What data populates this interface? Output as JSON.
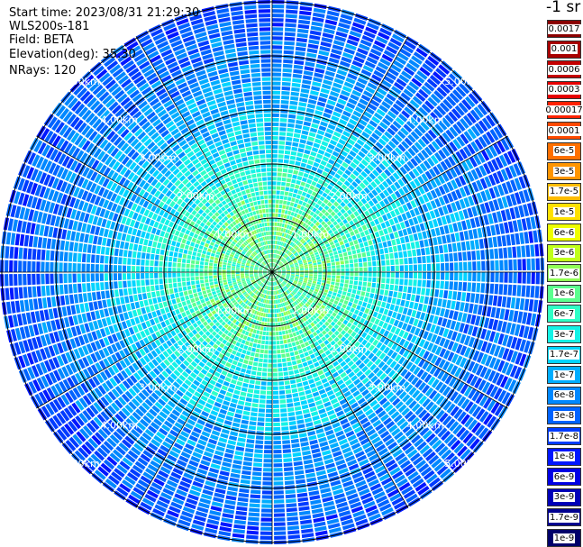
{
  "info": {
    "start_time": "Start time: 2023/08/31 21:29:30",
    "instrument": "WLS200s-181",
    "field": "Field: BETA",
    "elevation": "Elevation(deg): 35.30",
    "nrays": "NRays: 120"
  },
  "chart_data": {
    "type": "heatmap",
    "projection": "polar (PPI scan)",
    "n_rays": 120,
    "elevation_deg": 35.3,
    "range_rings_km": [
      1,
      2,
      3,
      4,
      5
    ],
    "ring_labels": [
      "1.00km",
      "2.00km",
      "3.00km",
      "4.00km",
      "5.00km"
    ],
    "spoke_step_deg": 30,
    "grid": true,
    "pattern_description_values": {
      "near_range_level": "1.7e-6 to 6e-6",
      "far_range_level": "1.7e-8 to 1.7e-7"
    },
    "colorbar": {
      "unit": "-1 sr",
      "levels": [
        {
          "label": "0.0017",
          "color": "#8b0000"
        },
        {
          "label": "0.001",
          "color": "#a80000"
        },
        {
          "label": "0.0006",
          "color": "#c40000"
        },
        {
          "label": "0.0003",
          "color": "#e60000"
        },
        {
          "label": "0.00017",
          "color": "#ff2200"
        },
        {
          "label": "0.0001",
          "color": "#ff4a00"
        },
        {
          "label": "6e-5",
          "color": "#ff7000"
        },
        {
          "label": "3e-5",
          "color": "#ff9500"
        },
        {
          "label": "1.7e-5",
          "color": "#ffbb00"
        },
        {
          "label": "1e-5",
          "color": "#ffe100"
        },
        {
          "label": "6e-6",
          "color": "#eeff00"
        },
        {
          "label": "3e-6",
          "color": "#c0ff1a"
        },
        {
          "label": "1.7e-6",
          "color": "#8fff55"
        },
        {
          "label": "1e-6",
          "color": "#5bff8e"
        },
        {
          "label": "6e-7",
          "color": "#2fffc6"
        },
        {
          "label": "3e-7",
          "color": "#14f2e6"
        },
        {
          "label": "1.7e-7",
          "color": "#00d4ff"
        },
        {
          "label": "1e-7",
          "color": "#00adff"
        },
        {
          "label": "6e-8",
          "color": "#0088ff"
        },
        {
          "label": "3e-8",
          "color": "#0063ff"
        },
        {
          "label": "1.7e-8",
          "color": "#003bff"
        },
        {
          "label": "1e-8",
          "color": "#0016ff"
        },
        {
          "label": "6e-9",
          "color": "#0000e4"
        },
        {
          "label": "3e-9",
          "color": "#0000b8"
        },
        {
          "label": "1.7e-9",
          "color": "#000090"
        },
        {
          "label": "1e-9",
          "color": "#00006a"
        }
      ]
    }
  }
}
